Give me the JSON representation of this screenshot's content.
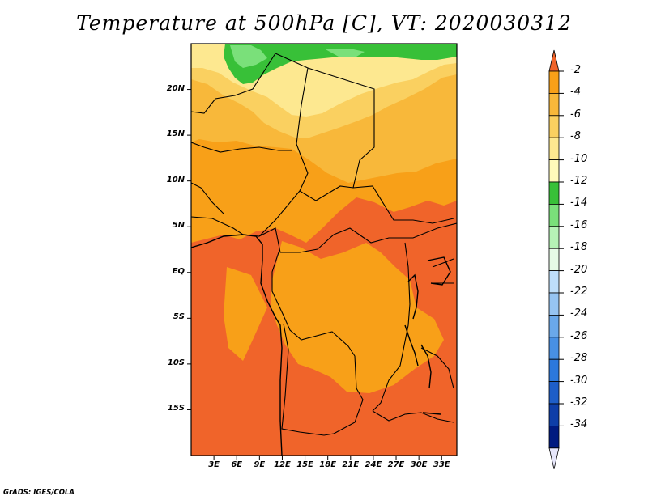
{
  "title": "Temperature at 500hPa [C], VT: 2020030312",
  "footer": "GrADS: IGES/COLA",
  "map": {
    "lon_range": [
      0,
      35
    ],
    "lat_range": [
      -20,
      25
    ],
    "y_ticks": [
      {
        "label": "20N",
        "lat": 20
      },
      {
        "label": "15N",
        "lat": 15
      },
      {
        "label": "10N",
        "lat": 10
      },
      {
        "label": "5N",
        "lat": 5
      },
      {
        "label": "EQ",
        "lat": 0
      },
      {
        "label": "5S",
        "lat": -5
      },
      {
        "label": "10S",
        "lat": -10
      },
      {
        "label": "15S",
        "lat": -15
      }
    ],
    "x_ticks": [
      {
        "label": "3E",
        "lon": 3
      },
      {
        "label": "6E",
        "lon": 6
      },
      {
        "label": "9E",
        "lon": 9
      },
      {
        "label": "12E",
        "lon": 12
      },
      {
        "label": "15E",
        "lon": 15
      },
      {
        "label": "18E",
        "lon": 18
      },
      {
        "label": "21E",
        "lon": 21
      },
      {
        "label": "24E",
        "lon": 24
      },
      {
        "label": "27E",
        "lon": 27
      },
      {
        "label": "30E",
        "lon": 30
      },
      {
        "label": "33E",
        "lon": 33
      }
    ]
  },
  "colorbar": {
    "labels": [
      "-2",
      "-4",
      "-6",
      "-8",
      "-10",
      "-12",
      "-14",
      "-16",
      "-18",
      "-20",
      "-22",
      "-24",
      "-26",
      "-28",
      "-30",
      "-32",
      "-34"
    ],
    "colors": [
      "#f0642a",
      "#f8a018",
      "#f8b83a",
      "#fad060",
      "#fde890",
      "#fffaba",
      "#38c038",
      "#7ae07a",
      "#b6f2b6",
      "#e6fae6",
      "#bedefa",
      "#96c4f2",
      "#6aa8ea",
      "#4890e4",
      "#2c78dc",
      "#1e5ec8",
      "#0e3ea8",
      "#001a80",
      "#e6e6fa"
    ]
  },
  "field_colors": {
    "t_minus_3": "#f0642a",
    "t_minus_5": "#f8a018",
    "t_minus_7": "#f8b83a",
    "t_minus_9": "#fad060",
    "t_minus_11": "#fde890",
    "t_minus_13": "#38c038",
    "t_minus_15": "#7ae07a"
  }
}
